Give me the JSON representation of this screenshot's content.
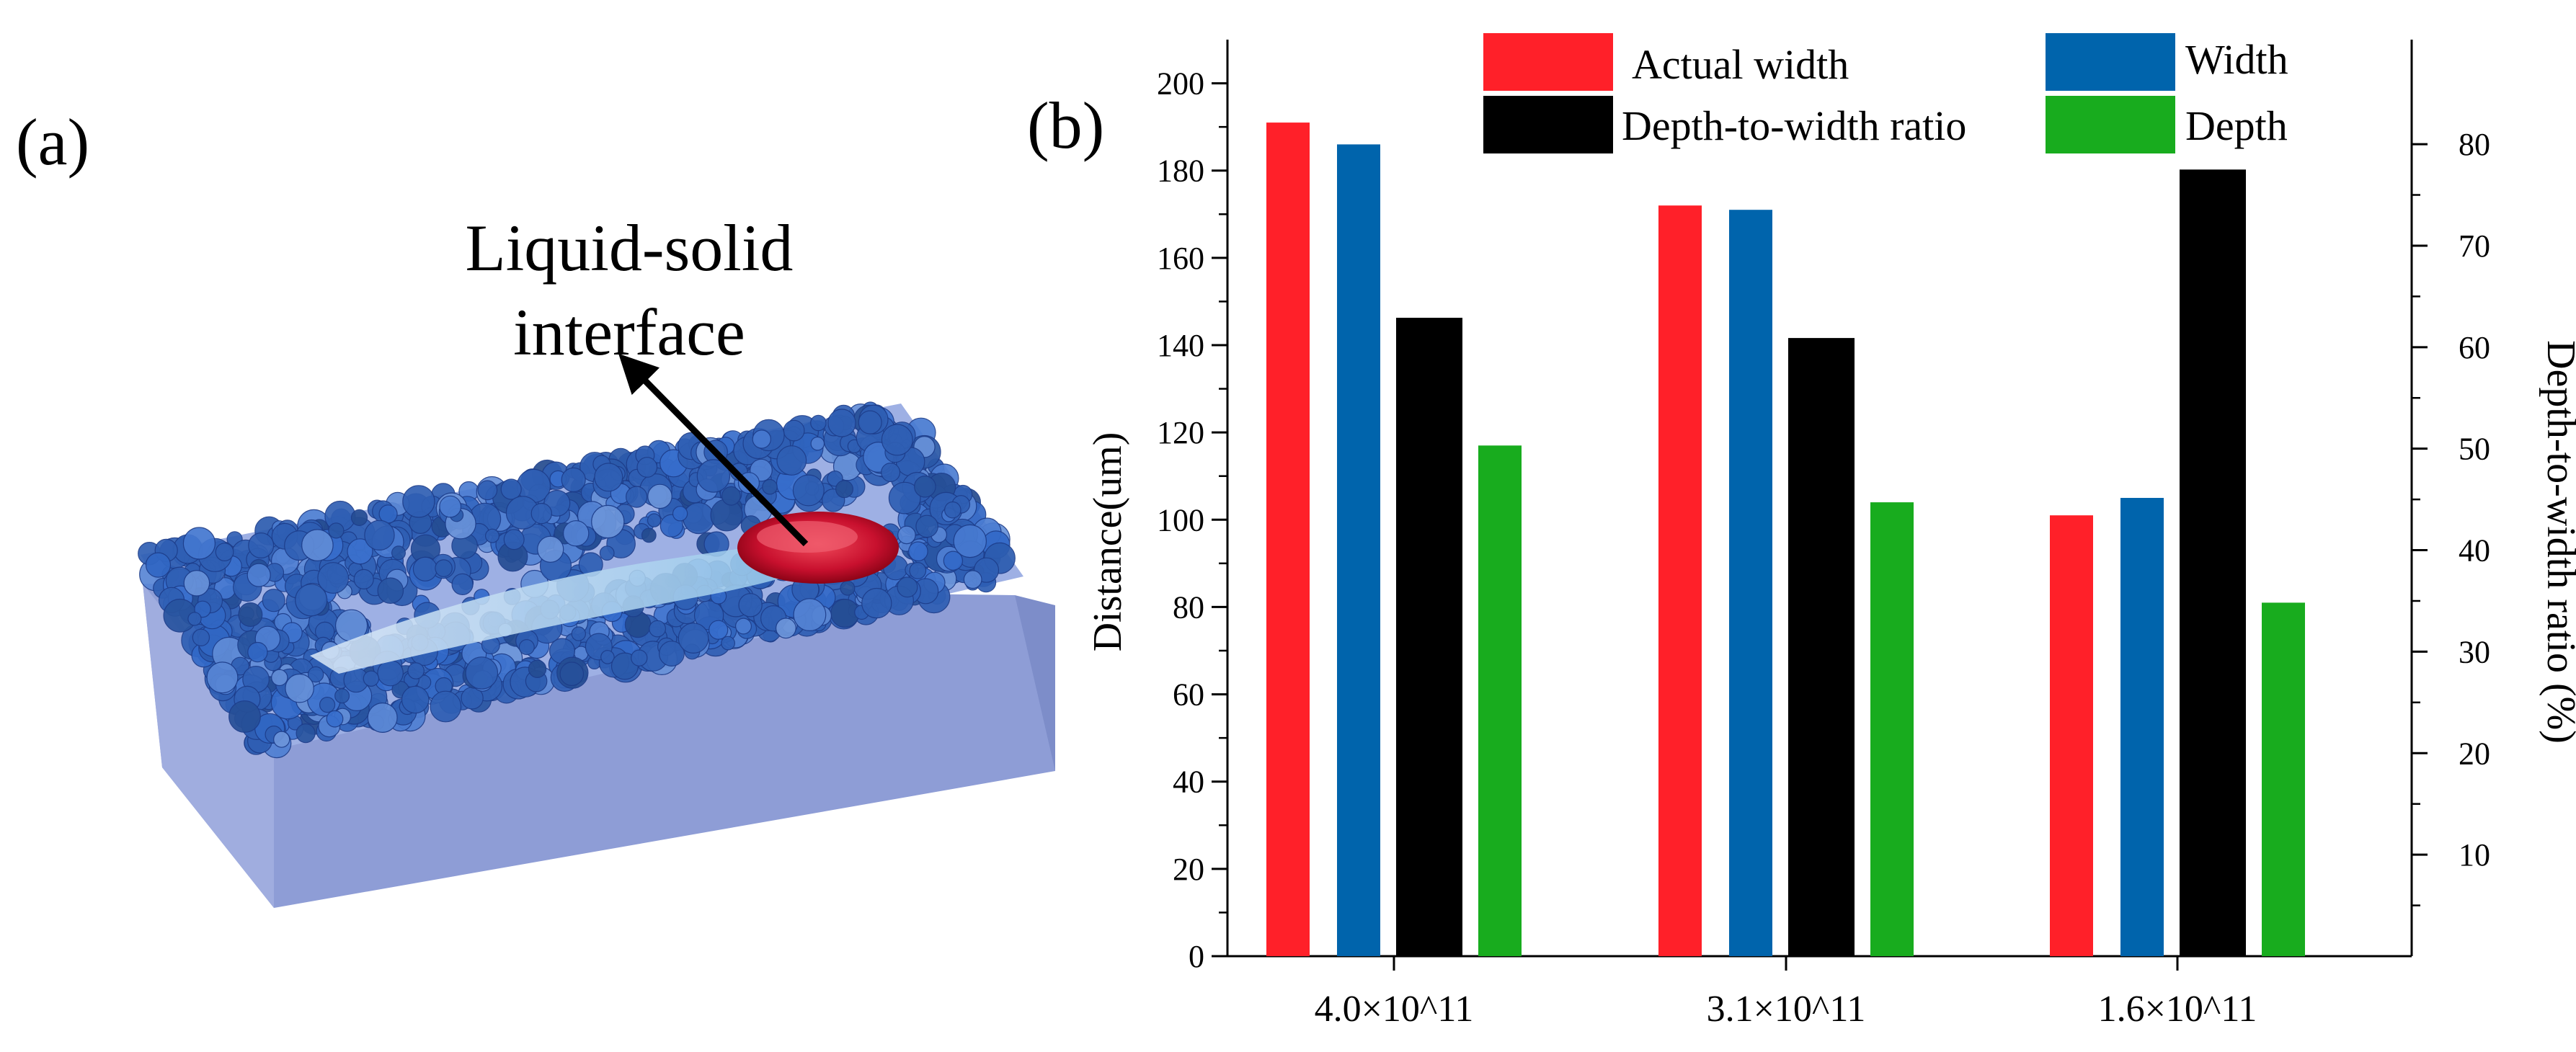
{
  "panel_a": {
    "label": "(a)",
    "annotation": [
      "Liquid-solid",
      "interface"
    ],
    "colors": {
      "substrate": "#8e9dd6",
      "powder": "#2f5fb4",
      "melt_pool": "#c8102e"
    }
  },
  "chart_data": {
    "type": "bar",
    "panel_label": "(b)",
    "categories": [
      "4.0×10^11",
      "3.1×10^11",
      "1.6×10^11"
    ],
    "series": [
      {
        "name": "Actual width",
        "axis": "left",
        "color": "#ff2029",
        "values": [
          191,
          172,
          101
        ]
      },
      {
        "name": "Width",
        "axis": "left",
        "color": "#0064ac",
        "values": [
          186,
          171,
          105
        ]
      },
      {
        "name": "Depth-to-width ratio",
        "axis": "right",
        "color": "#000000",
        "values": [
          62.9,
          60.9,
          77.5
        ]
      },
      {
        "name": "Depth",
        "axis": "left",
        "color": "#18ac1e",
        "values": [
          117,
          104,
          81
        ]
      }
    ],
    "ylabel": "Distance(um)",
    "ylim": [
      0,
      210
    ],
    "yticks": [
      0,
      20,
      40,
      60,
      80,
      100,
      120,
      140,
      160,
      180,
      200
    ],
    "y2label": "Depth-to-width ratio (%)",
    "y2lim": [
      0,
      90.3
    ],
    "y2ticks": [
      10,
      20,
      30,
      40,
      50,
      60,
      70,
      80
    ],
    "legend": {
      "position": "top",
      "entries": [
        "Actual width",
        "Width",
        "Depth-to-width ratio",
        "Depth"
      ]
    }
  }
}
